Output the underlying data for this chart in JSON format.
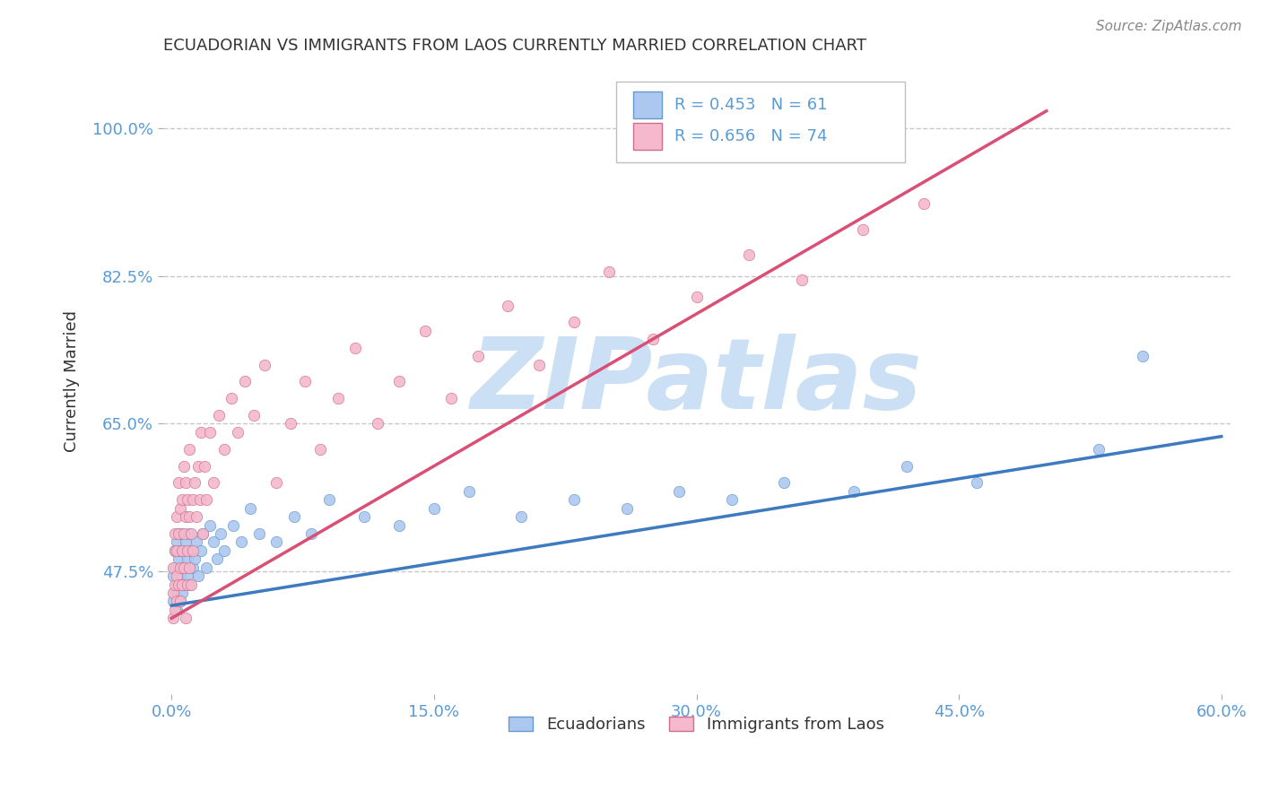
{
  "title": "ECUADORIAN VS IMMIGRANTS FROM LAOS CURRENTLY MARRIED CORRELATION CHART",
  "source_text": "Source: ZipAtlas.com",
  "ylabel": "Currently Married",
  "xlabel": "",
  "xlim": [
    -0.005,
    0.605
  ],
  "ylim": [
    0.33,
    1.07
  ],
  "yticks": [
    0.475,
    0.65,
    0.825,
    1.0
  ],
  "ytick_labels": [
    "47.5%",
    "65.0%",
    "82.5%",
    "100.0%"
  ],
  "xticks": [
    0.0,
    0.15,
    0.3,
    0.45,
    0.6
  ],
  "xtick_labels": [
    "0.0%",
    "15.0%",
    "30.0%",
    "45.0%",
    "60.0%"
  ],
  "background_color": "#ffffff",
  "grid_color": "#c8c8c8",
  "watermark": "ZIPatlas",
  "watermark_color": "#cce0f5",
  "ecuadorians": {
    "color": "#adc8f0",
    "edge_color": "#6699cc",
    "line_color": "#3d7abf",
    "R": 0.453,
    "N": 61,
    "label": "Ecuadorians",
    "x": [
      0.001,
      0.001,
      0.002,
      0.002,
      0.002,
      0.003,
      0.003,
      0.003,
      0.004,
      0.004,
      0.004,
      0.005,
      0.005,
      0.005,
      0.006,
      0.006,
      0.006,
      0.007,
      0.007,
      0.008,
      0.008,
      0.009,
      0.009,
      0.01,
      0.01,
      0.011,
      0.012,
      0.013,
      0.014,
      0.015,
      0.017,
      0.018,
      0.02,
      0.022,
      0.024,
      0.026,
      0.028,
      0.03,
      0.035,
      0.04,
      0.045,
      0.05,
      0.06,
      0.07,
      0.08,
      0.09,
      0.11,
      0.13,
      0.15,
      0.17,
      0.2,
      0.23,
      0.26,
      0.29,
      0.32,
      0.35,
      0.39,
      0.42,
      0.46,
      0.53,
      0.555
    ],
    "y": [
      0.47,
      0.44,
      0.5,
      0.45,
      0.48,
      0.51,
      0.46,
      0.43,
      0.49,
      0.52,
      0.46,
      0.5,
      0.44,
      0.47,
      0.52,
      0.48,
      0.45,
      0.5,
      0.46,
      0.48,
      0.51,
      0.47,
      0.49,
      0.52,
      0.46,
      0.5,
      0.48,
      0.49,
      0.51,
      0.47,
      0.5,
      0.52,
      0.48,
      0.53,
      0.51,
      0.49,
      0.52,
      0.5,
      0.53,
      0.51,
      0.55,
      0.52,
      0.51,
      0.54,
      0.52,
      0.56,
      0.54,
      0.53,
      0.55,
      0.57,
      0.54,
      0.56,
      0.55,
      0.57,
      0.56,
      0.58,
      0.57,
      0.6,
      0.58,
      0.62,
      0.73
    ],
    "line_x": [
      0.0,
      0.6
    ],
    "line_y": [
      0.435,
      0.635
    ]
  },
  "laos": {
    "color": "#f5b8cc",
    "edge_color": "#cc7090",
    "line_color": "#d94f75",
    "R": 0.656,
    "N": 74,
    "label": "Immigrants from Laos",
    "x": [
      0.001,
      0.001,
      0.001,
      0.002,
      0.002,
      0.002,
      0.002,
      0.003,
      0.003,
      0.003,
      0.003,
      0.004,
      0.004,
      0.004,
      0.005,
      0.005,
      0.005,
      0.006,
      0.006,
      0.006,
      0.007,
      0.007,
      0.007,
      0.008,
      0.008,
      0.008,
      0.009,
      0.009,
      0.009,
      0.01,
      0.01,
      0.01,
      0.011,
      0.011,
      0.012,
      0.012,
      0.013,
      0.014,
      0.015,
      0.016,
      0.017,
      0.018,
      0.019,
      0.02,
      0.022,
      0.024,
      0.027,
      0.03,
      0.034,
      0.038,
      0.042,
      0.047,
      0.053,
      0.06,
      0.068,
      0.076,
      0.085,
      0.095,
      0.105,
      0.118,
      0.13,
      0.145,
      0.16,
      0.175,
      0.192,
      0.21,
      0.23,
      0.25,
      0.275,
      0.3,
      0.33,
      0.36,
      0.395,
      0.43
    ],
    "y": [
      0.45,
      0.42,
      0.48,
      0.46,
      0.5,
      0.43,
      0.52,
      0.47,
      0.44,
      0.54,
      0.5,
      0.46,
      0.58,
      0.52,
      0.48,
      0.55,
      0.44,
      0.5,
      0.56,
      0.46,
      0.52,
      0.6,
      0.48,
      0.54,
      0.42,
      0.58,
      0.5,
      0.56,
      0.46,
      0.54,
      0.48,
      0.62,
      0.52,
      0.46,
      0.56,
      0.5,
      0.58,
      0.54,
      0.6,
      0.56,
      0.64,
      0.52,
      0.6,
      0.56,
      0.64,
      0.58,
      0.66,
      0.62,
      0.68,
      0.64,
      0.7,
      0.66,
      0.72,
      0.58,
      0.65,
      0.7,
      0.62,
      0.68,
      0.74,
      0.65,
      0.7,
      0.76,
      0.68,
      0.73,
      0.79,
      0.72,
      0.77,
      0.83,
      0.75,
      0.8,
      0.85,
      0.82,
      0.88,
      0.91
    ],
    "line_x": [
      0.0,
      0.5
    ],
    "line_y": [
      0.42,
      1.02
    ]
  },
  "title_color": "#333333",
  "source_color": "#888888",
  "tick_color": "#5b9bd5",
  "legend_R_color": "#5b9bd5"
}
